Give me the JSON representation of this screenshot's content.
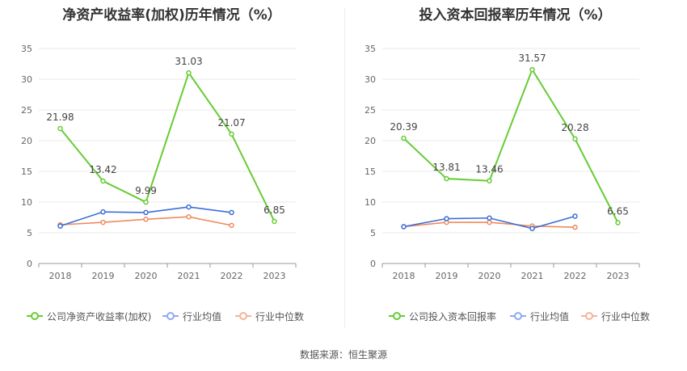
{
  "source": "数据来源：恒生聚源",
  "colors": {
    "company": "#66cc33",
    "avg": "#3b6fd8",
    "median": "#f08a5d",
    "avg_legend": "#8ea9f0",
    "median_legend": "#f5b49a",
    "grid": "#e8e8e8",
    "axis": "#999999"
  },
  "chart_data": [
    {
      "type": "line",
      "title": "净资产收益率(加权)历年情况（%）",
      "categories": [
        "2018",
        "2019",
        "2020",
        "2021",
        "2022",
        "2023"
      ],
      "ylim": [
        0,
        35
      ],
      "yticks": [
        0,
        5,
        10,
        15,
        20,
        25,
        30,
        35
      ],
      "grid": true,
      "legend_position": "bottom",
      "series": [
        {
          "name": "公司净资产收益率(加权)",
          "values": [
            21.98,
            13.42,
            9.99,
            31.03,
            21.07,
            6.85
          ],
          "labels": [
            "21.98",
            "13.42",
            "9.99",
            "31.03",
            "21.07",
            "6.85"
          ]
        },
        {
          "name": "行业均值",
          "values": [
            6.1,
            8.4,
            8.3,
            9.2,
            8.3,
            null
          ]
        },
        {
          "name": "行业中位数",
          "values": [
            6.3,
            6.7,
            7.2,
            7.6,
            6.2,
            null
          ]
        }
      ]
    },
    {
      "type": "line",
      "title": "投入资本回报率历年情况（%）",
      "categories": [
        "2018",
        "2019",
        "2020",
        "2021",
        "2022",
        "2023"
      ],
      "ylim": [
        0,
        35
      ],
      "yticks": [
        0,
        5,
        10,
        15,
        20,
        25,
        30,
        35
      ],
      "grid": true,
      "legend_position": "bottom",
      "series": [
        {
          "name": "公司投入资本回报率",
          "values": [
            20.39,
            13.81,
            13.46,
            31.57,
            20.28,
            6.65
          ],
          "labels": [
            "20.39",
            "13.81",
            "13.46",
            "31.57",
            "20.28",
            "6.65"
          ]
        },
        {
          "name": "行业均值",
          "values": [
            6.0,
            7.3,
            7.4,
            5.7,
            7.7,
            null
          ]
        },
        {
          "name": "行业中位数",
          "values": [
            6.0,
            6.7,
            6.7,
            6.1,
            5.9,
            null
          ]
        }
      ]
    }
  ]
}
